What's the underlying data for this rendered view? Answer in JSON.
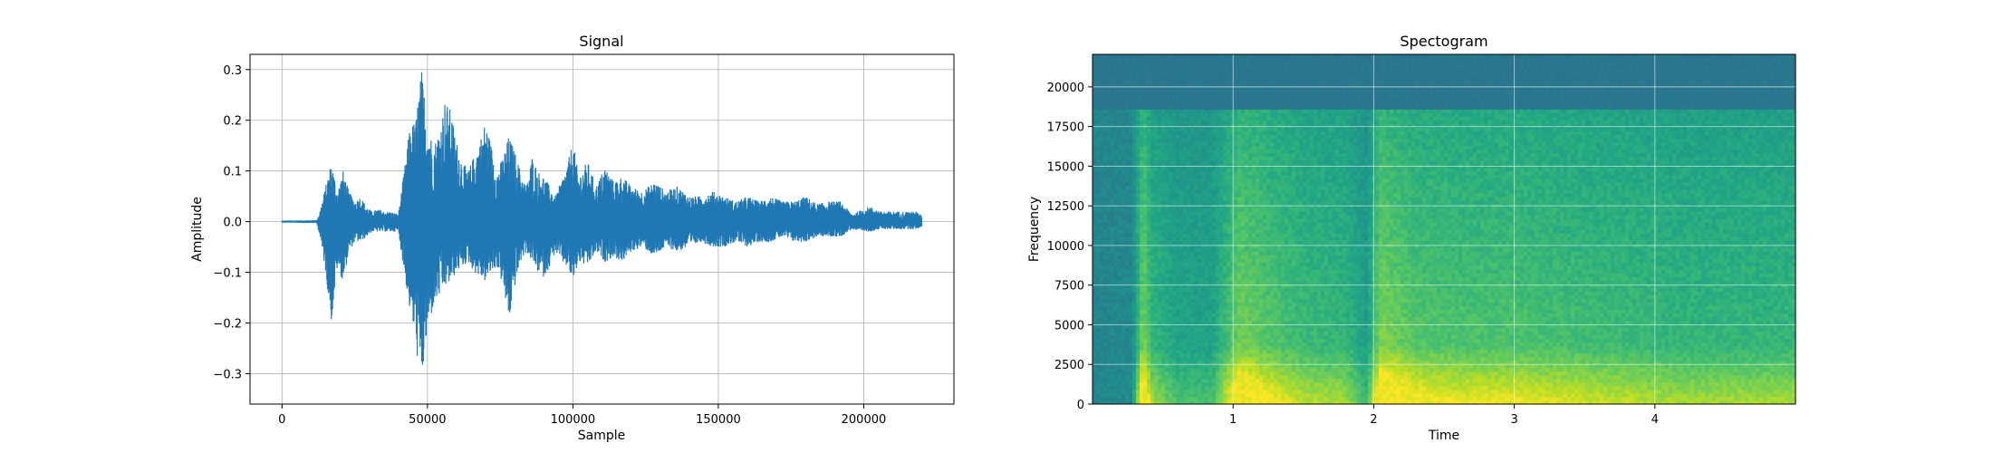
{
  "chart_data": [
    {
      "type": "line",
      "title": "Signal",
      "xlabel": "Sample",
      "ylabel": "Amplitude",
      "xlim": [
        -11000,
        231000
      ],
      "ylim": [
        -0.36,
        0.33
      ],
      "grid": true,
      "color": "#1f77b4",
      "x_ticks": [
        {
          "v": 0,
          "label": "0"
        },
        {
          "v": 50000,
          "label": "50000"
        },
        {
          "v": 100000,
          "label": "100000"
        },
        {
          "v": 150000,
          "label": "150000"
        },
        {
          "v": 200000,
          "label": "200000"
        }
      ],
      "y_ticks": [
        {
          "v": -0.3,
          "label": "−0.3"
        },
        {
          "v": -0.2,
          "label": "−0.2"
        },
        {
          "v": -0.1,
          "label": "−0.1"
        },
        {
          "v": 0.0,
          "label": "0.0"
        },
        {
          "v": 0.1,
          "label": "0.1"
        },
        {
          "v": 0.2,
          "label": "0.2"
        },
        {
          "v": 0.3,
          "label": "0.3"
        }
      ],
      "envelope": {
        "x": [
          0,
          12000,
          13000,
          15000,
          17000,
          19000,
          21000,
          23000,
          25000,
          27000,
          29000,
          31000,
          33000,
          35000,
          37000,
          40000,
          42000,
          44000,
          46000,
          47000,
          48000,
          50000,
          52000,
          54000,
          56000,
          58000,
          60000,
          62000,
          64000,
          66000,
          68000,
          70000,
          72000,
          74000,
          76000,
          78000,
          80000,
          82000,
          84000,
          86000,
          88000,
          90000,
          92000,
          94000,
          96000,
          98000,
          100000,
          102000,
          105000,
          108000,
          111000,
          114000,
          117000,
          120000,
          124000,
          128000,
          132000,
          136000,
          140000,
          144000,
          148000,
          152000,
          156000,
          160000,
          164000,
          168000,
          172000,
          176000,
          180000,
          184000,
          188000,
          192000,
          196000,
          198000,
          200000,
          202000,
          206000,
          210000,
          214000,
          218000,
          220000
        ],
        "upper": [
          0.002,
          0.003,
          0.02,
          0.07,
          0.12,
          0.06,
          0.1,
          0.06,
          0.04,
          0.05,
          0.03,
          0.02,
          0.025,
          0.02,
          0.02,
          0.015,
          0.1,
          0.19,
          0.2,
          0.26,
          0.3,
          0.2,
          0.15,
          0.18,
          0.24,
          0.22,
          0.16,
          0.12,
          0.1,
          0.13,
          0.16,
          0.2,
          0.15,
          0.1,
          0.13,
          0.17,
          0.14,
          0.1,
          0.07,
          0.13,
          0.1,
          0.09,
          0.07,
          0.05,
          0.08,
          0.11,
          0.16,
          0.09,
          0.12,
          0.07,
          0.11,
          0.08,
          0.09,
          0.07,
          0.06,
          0.08,
          0.06,
          0.07,
          0.05,
          0.05,
          0.06,
          0.05,
          0.04,
          0.05,
          0.04,
          0.05,
          0.04,
          0.04,
          0.05,
          0.035,
          0.04,
          0.04,
          0.015,
          0.02,
          0.025,
          0.03,
          0.02,
          0.02,
          0.02,
          0.02,
          0.012
        ],
        "lower": [
          -0.002,
          -0.003,
          -0.03,
          -0.1,
          -0.2,
          -0.09,
          -0.12,
          -0.06,
          -0.04,
          -0.04,
          -0.03,
          -0.02,
          -0.02,
          -0.02,
          -0.02,
          -0.02,
          -0.1,
          -0.18,
          -0.24,
          -0.3,
          -0.32,
          -0.22,
          -0.17,
          -0.15,
          -0.13,
          -0.12,
          -0.1,
          -0.09,
          -0.08,
          -0.1,
          -0.11,
          -0.12,
          -0.1,
          -0.09,
          -0.13,
          -0.2,
          -0.13,
          -0.08,
          -0.06,
          -0.08,
          -0.1,
          -0.11,
          -0.09,
          -0.06,
          -0.08,
          -0.09,
          -0.12,
          -0.08,
          -0.09,
          -0.06,
          -0.08,
          -0.07,
          -0.08,
          -0.06,
          -0.05,
          -0.07,
          -0.05,
          -0.06,
          -0.05,
          -0.04,
          -0.05,
          -0.05,
          -0.04,
          -0.05,
          -0.04,
          -0.04,
          -0.03,
          -0.04,
          -0.04,
          -0.03,
          -0.03,
          -0.03,
          -0.015,
          -0.02,
          -0.02,
          -0.02,
          -0.015,
          -0.015,
          -0.015,
          -0.015,
          -0.01
        ]
      }
    },
    {
      "type": "heatmap",
      "title": "Spectogram",
      "xlabel": "Time",
      "ylabel": "Frequency",
      "xlim": [
        0,
        5
      ],
      "ylim": [
        0,
        22050
      ],
      "grid": true,
      "colormap": "viridis",
      "x_ticks": [
        {
          "v": 1,
          "label": "1"
        },
        {
          "v": 2,
          "label": "2"
        },
        {
          "v": 3,
          "label": "3"
        },
        {
          "v": 4,
          "label": "4"
        }
      ],
      "y_ticks": [
        {
          "v": 0,
          "label": "0"
        },
        {
          "v": 2500,
          "label": "2500"
        },
        {
          "v": 5000,
          "label": "5000"
        },
        {
          "v": 7500,
          "label": "7500"
        },
        {
          "v": 10000,
          "label": "10000"
        },
        {
          "v": 12500,
          "label": "12500"
        },
        {
          "v": 15000,
          "label": "15000"
        },
        {
          "v": 17500,
          "label": "17500"
        },
        {
          "v": 20000,
          "label": "20000"
        }
      ],
      "cutoff_frequency": 18500,
      "intensity_by_time": [
        {
          "t": 0.0,
          "level": 0.0
        },
        {
          "t": 0.28,
          "level": 0.05
        },
        {
          "t": 0.36,
          "level": 0.95
        },
        {
          "t": 0.42,
          "level": 0.55
        },
        {
          "t": 0.6,
          "level": 0.35
        },
        {
          "t": 0.85,
          "level": 0.35
        },
        {
          "t": 1.05,
          "level": 0.9
        },
        {
          "t": 1.25,
          "level": 0.75
        },
        {
          "t": 1.5,
          "level": 0.6
        },
        {
          "t": 1.8,
          "level": 0.55
        },
        {
          "t": 1.95,
          "level": 0.3
        },
        {
          "t": 2.05,
          "level": 0.95
        },
        {
          "t": 2.3,
          "level": 0.75
        },
        {
          "t": 2.6,
          "level": 0.7
        },
        {
          "t": 3.0,
          "level": 0.7
        },
        {
          "t": 3.4,
          "level": 0.65
        },
        {
          "t": 3.8,
          "level": 0.6
        },
        {
          "t": 4.2,
          "level": 0.55
        },
        {
          "t": 4.6,
          "level": 0.55
        },
        {
          "t": 5.0,
          "level": 0.55
        }
      ]
    }
  ]
}
